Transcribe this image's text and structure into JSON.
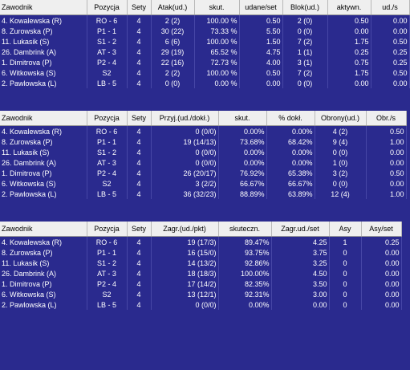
{
  "tables": [
    {
      "headers": [
        "Zawodnik",
        "Pozycja",
        "Sety",
        "Atak(ud.)",
        "skut.",
        "udane/set",
        "Blok(ud.)",
        "aktywn.",
        "ud./s"
      ],
      "rows": [
        [
          "4. Kowalewska (R)",
          "RO - 6",
          "4",
          "2 (2)",
          "100.00 %",
          "0.50",
          "2 (0)",
          "0.50",
          "0.00"
        ],
        [
          "8. Zurowska (P)",
          "P1 - 1",
          "4",
          "30 (22)",
          "73.33 %",
          "5.50",
          "0 (0)",
          "0.00",
          "0.00"
        ],
        [
          "11. Lukasik (S)",
          "S1 - 2",
          "4",
          "6 (6)",
          "100.00 %",
          "1.50",
          "7 (2)",
          "1.75",
          "0.50"
        ],
        [
          "26. Dambrink (A)",
          "AT - 3",
          "4",
          "29 (19)",
          "65.52 %",
          "4.75",
          "1 (1)",
          "0.25",
          "0.25"
        ],
        [
          "1. Dimitrova (P)",
          "P2 - 4",
          "4",
          "22 (16)",
          "72.73 %",
          "4.00",
          "3 (1)",
          "0.75",
          "0.25"
        ],
        [
          "6. Witkowska (S)",
          "S2",
          "4",
          "2 (2)",
          "100.00 %",
          "0.50",
          "7 (2)",
          "1.75",
          "0.50"
        ],
        [
          "2. Pawlowska (L)",
          "LB - 5",
          "4",
          "0 (0)",
          "0.00 %",
          "0.00",
          "0 (0)",
          "0.00",
          "0.00"
        ]
      ]
    },
    {
      "headers": [
        "Zawodnik",
        "Pozycja",
        "Sety",
        "Przyj.(ud./dokł.)",
        "skut.",
        "% dokł.",
        "Obrony(ud.)",
        "Obr./s"
      ],
      "rows": [
        [
          "4. Kowalewska (R)",
          "RO - 6",
          "4",
          "0 (0/0)",
          "0.00%",
          "0.00%",
          "4 (2)",
          "0.50"
        ],
        [
          "8. Zurowska (P)",
          "P1 - 1",
          "4",
          "19 (14/13)",
          "73.68%",
          "68.42%",
          "9 (4)",
          "1.00"
        ],
        [
          "11. Lukasik (S)",
          "S1 - 2",
          "4",
          "0 (0/0)",
          "0.00%",
          "0.00%",
          "0 (0)",
          "0.00"
        ],
        [
          "26. Dambrink (A)",
          "AT - 3",
          "4",
          "0 (0/0)",
          "0.00%",
          "0.00%",
          "1 (0)",
          "0.00"
        ],
        [
          "1. Dimitrova (P)",
          "P2 - 4",
          "4",
          "26 (20/17)",
          "76.92%",
          "65.38%",
          "3 (2)",
          "0.50"
        ],
        [
          "6. Witkowska (S)",
          "S2",
          "4",
          "3 (2/2)",
          "66.67%",
          "66.67%",
          "0 (0)",
          "0.00"
        ],
        [
          "2. Pawlowska (L)",
          "LB - 5",
          "4",
          "36 (32/23)",
          "88.89%",
          "63.89%",
          "12 (4)",
          "1.00"
        ]
      ]
    },
    {
      "headers": [
        "Zawodnik",
        "Pozycja",
        "Sety",
        "Zagr.(ud./pkt)",
        "skuteczn.",
        "Zagr.ud./set",
        "Asy",
        "Asy/set"
      ],
      "rows": [
        [
          "4. Kowalewska (R)",
          "RO - 6",
          "4",
          "19 (17/3)",
          "89.47%",
          "4.25",
          "1",
          "0.25"
        ],
        [
          "8. Zurowska (P)",
          "P1 - 1",
          "4",
          "16 (15/0)",
          "93.75%",
          "3.75",
          "0",
          "0.00"
        ],
        [
          "11. Lukasik (S)",
          "S1 - 2",
          "4",
          "14 (13/2)",
          "92.86%",
          "3.25",
          "0",
          "0.00"
        ],
        [
          "26. Dambrink (A)",
          "AT - 3",
          "4",
          "18 (18/3)",
          "100.00%",
          "4.50",
          "0",
          "0.00"
        ],
        [
          "1. Dimitrova (P)",
          "P2 - 4",
          "4",
          "17 (14/2)",
          "82.35%",
          "3.50",
          "0",
          "0.00"
        ],
        [
          "6. Witkowska (S)",
          "S2",
          "4",
          "13 (12/1)",
          "92.31%",
          "3.00",
          "0",
          "0.00"
        ],
        [
          "2. Pawlowska (L)",
          "LB - 5",
          "4",
          "0 (0/0)",
          "0.00%",
          "0.00",
          "0",
          "0.00"
        ]
      ]
    }
  ]
}
